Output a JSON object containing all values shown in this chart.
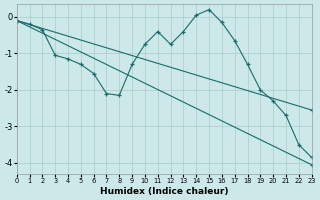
{
  "xlabel": "Humidex (Indice chaleur)",
  "background_color": "#cce8e8",
  "grid_color": "#aacccc",
  "line_color": "#1a6b6b",
  "xlim": [
    0,
    23
  ],
  "ylim": [
    -4.3,
    0.35
  ],
  "xticks": [
    0,
    1,
    2,
    3,
    4,
    5,
    6,
    7,
    8,
    9,
    10,
    11,
    12,
    13,
    14,
    15,
    16,
    17,
    18,
    19,
    20,
    21,
    22,
    23
  ],
  "yticks": [
    0,
    -1,
    -2,
    -3,
    -4
  ],
  "line1_x": [
    0,
    23
  ],
  "line1_y": [
    -0.1,
    -2.55
  ],
  "line2_x": [
    0,
    23
  ],
  "line2_y": [
    -0.1,
    -4.05
  ],
  "line3_x": [
    0,
    1,
    2,
    3,
    4,
    5,
    6,
    7,
    8,
    9,
    10,
    11,
    12,
    13,
    14,
    15,
    16,
    17,
    18,
    19,
    20,
    21,
    22,
    23
  ],
  "line3_y": [
    -0.1,
    -0.2,
    -0.35,
    -1.05,
    -1.15,
    -1.3,
    -1.55,
    -2.1,
    -2.15,
    -1.3,
    -0.75,
    -0.4,
    -0.75,
    -0.4,
    0.05,
    0.2,
    -0.15,
    -0.65,
    -1.3,
    -2.0,
    -2.3,
    -2.7,
    -3.5,
    -3.85
  ]
}
